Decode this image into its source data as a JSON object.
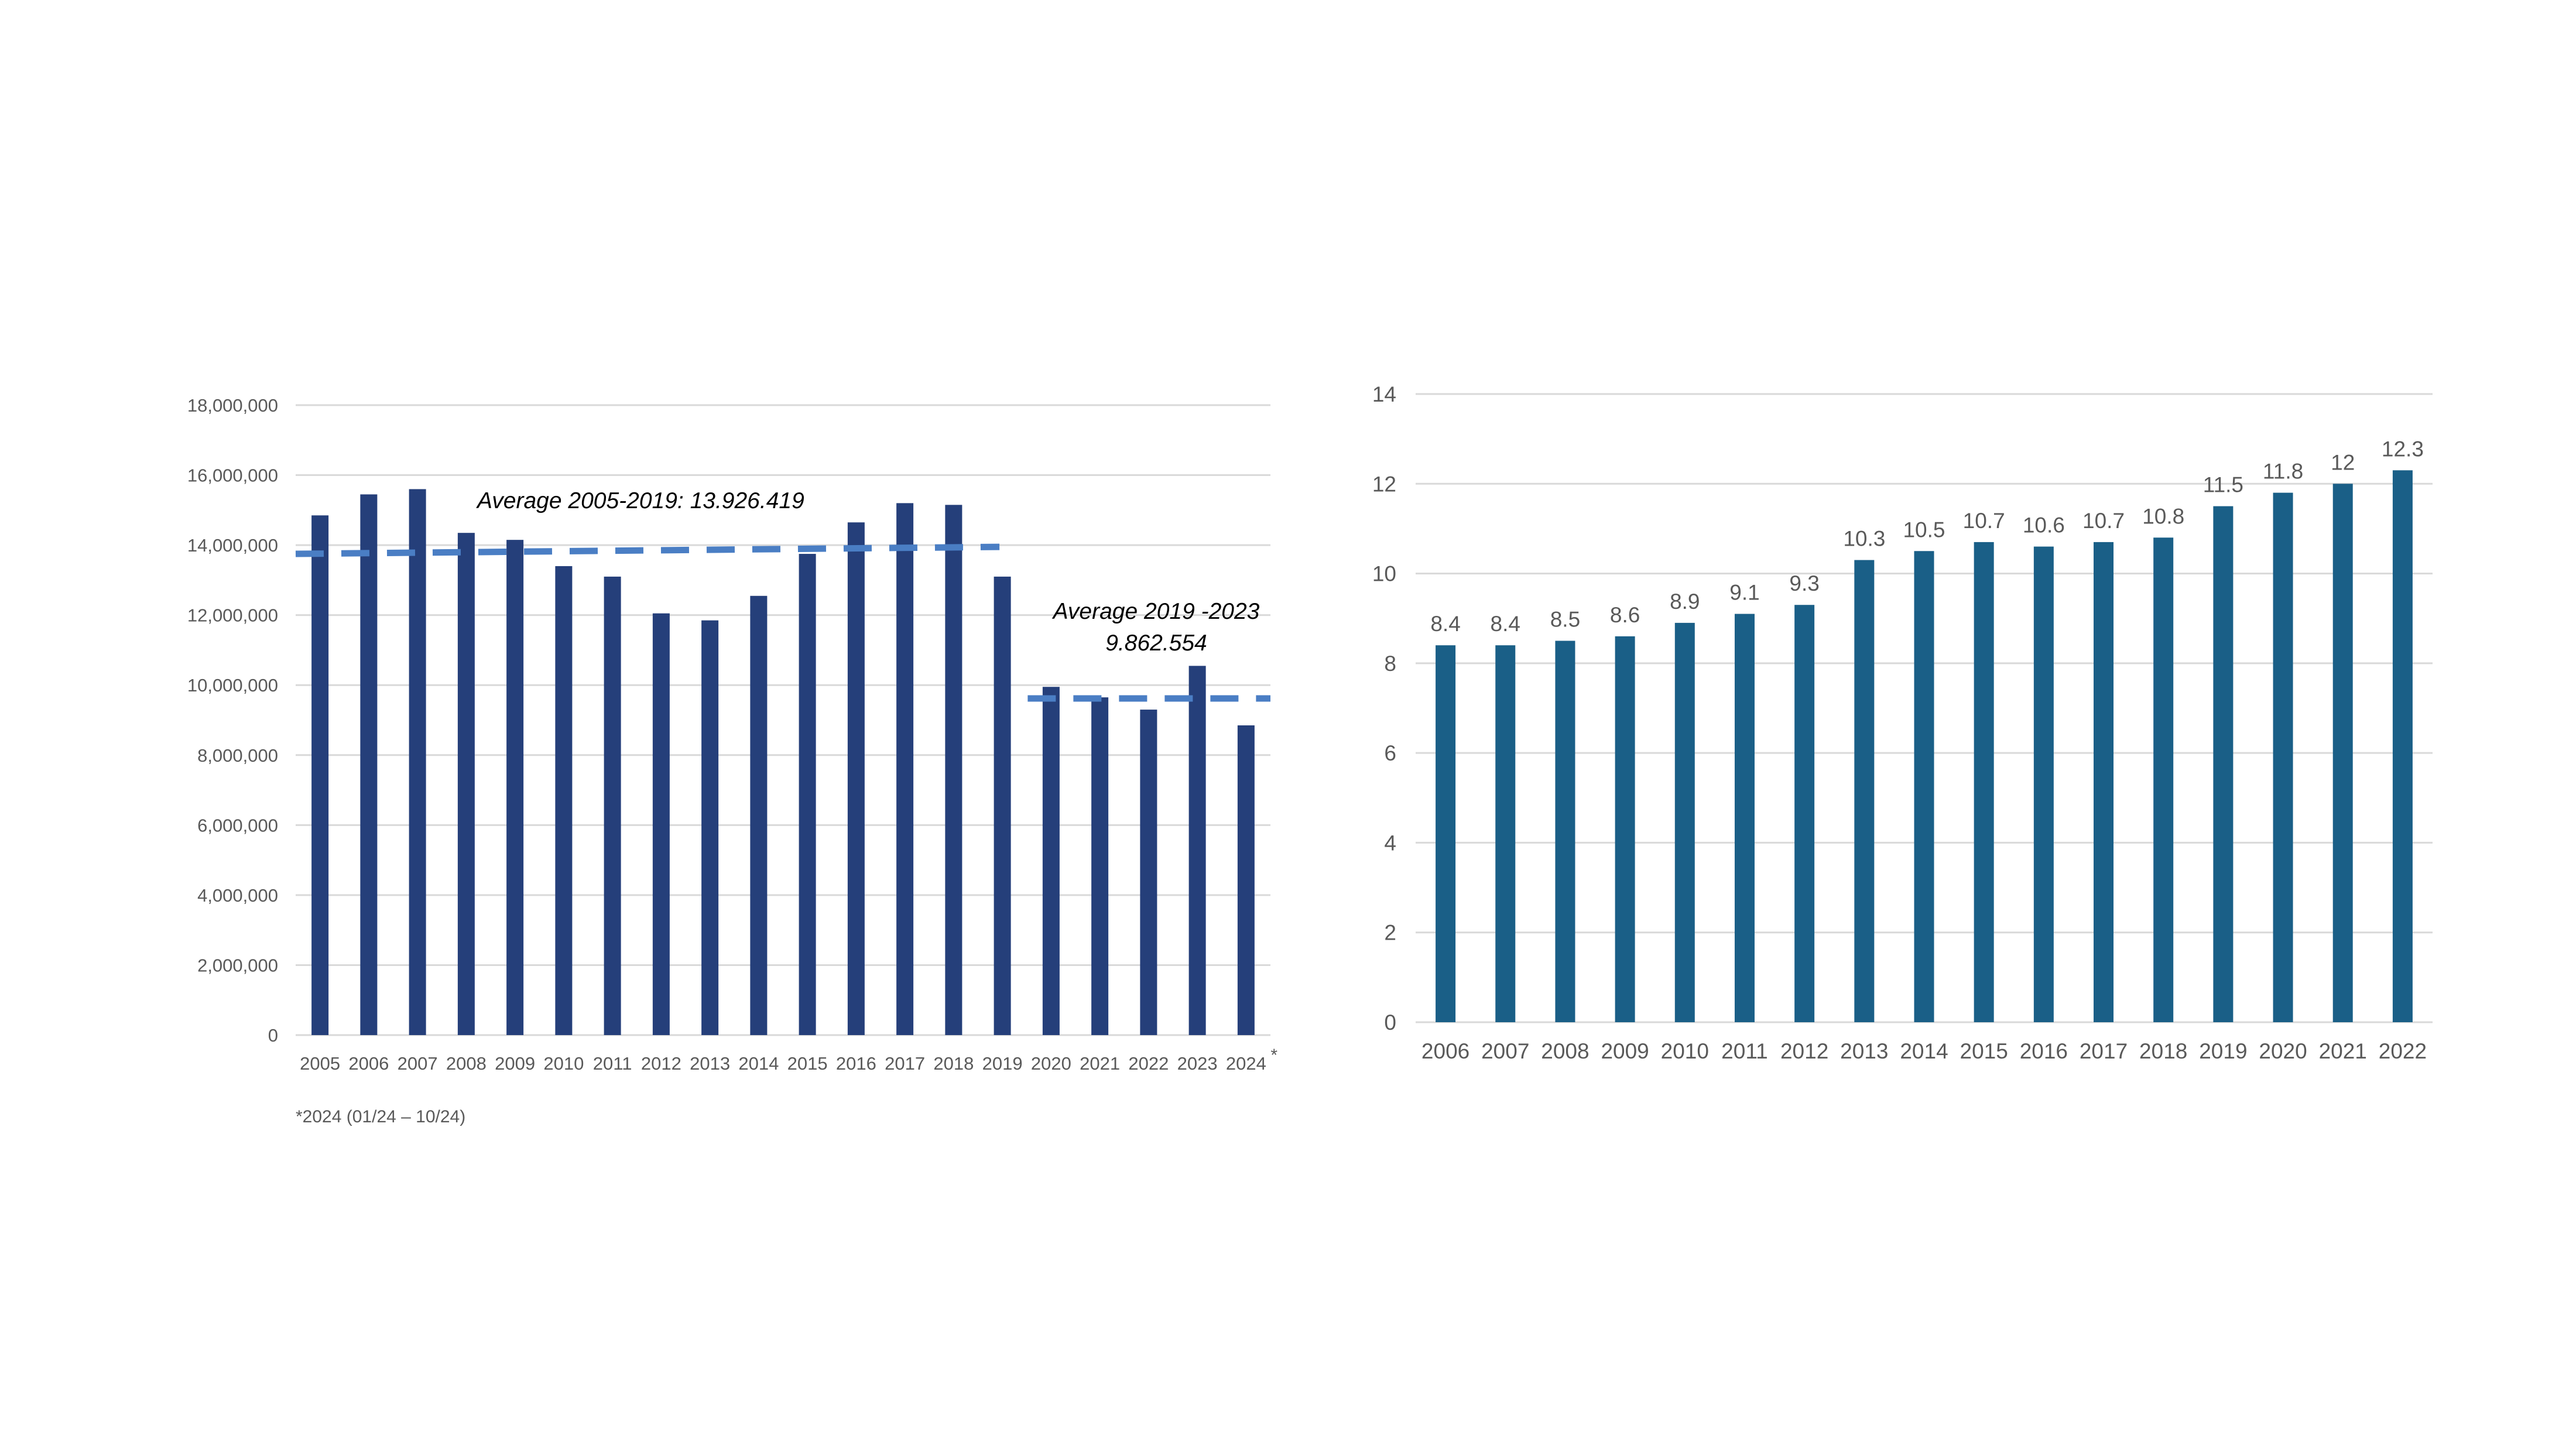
{
  "chart_data": [
    {
      "type": "bar",
      "title": "",
      "xlabel": "",
      "ylabel": "",
      "ylim": [
        0,
        18000000
      ],
      "ytick_labels": [
        "0",
        "2,000,000",
        "4,000,000",
        "6,000,000",
        "8,000,000",
        "10,000,000",
        "12,000,000",
        "14,000,000",
        "16,000,000",
        "18,000,000"
      ],
      "ytick_values": [
        0,
        2000000,
        4000000,
        6000000,
        8000000,
        10000000,
        12000000,
        14000000,
        16000000,
        18000000
      ],
      "categories": [
        "2005",
        "2006",
        "2007",
        "2008",
        "2009",
        "2010",
        "2011",
        "2012",
        "2013",
        "2014",
        "2015",
        "2016",
        "2017",
        "2018",
        "2019",
        "2020",
        "2021",
        "2022",
        "2023",
        "2024"
      ],
      "values": [
        14850000,
        15450000,
        15600000,
        14350000,
        14150000,
        13400000,
        13100000,
        12050000,
        11850000,
        12550000,
        13750000,
        14650000,
        15200000,
        15150000,
        13100000,
        9950000,
        9650000,
        9300000,
        10550000,
        8850000
      ],
      "bar_color": "#253F7A",
      "last_category_marker": "*",
      "footnote": "*2024 (01/24 – 10/24)",
      "averages": [
        {
          "label": "Average 2005-2019: 13.926.419",
          "start_value": 13750000,
          "end_value": 13950000,
          "from_category": "2005",
          "to_category": "2019"
        },
        {
          "label_line1": "Average 2019 -2023",
          "label_line2": "9.862.554",
          "start_value": 9620000,
          "end_value": 9620000,
          "from_category": "2020",
          "to_category": "2024"
        }
      ],
      "average_line_color": "#4A7EC4"
    },
    {
      "type": "bar",
      "title": "",
      "xlabel": "",
      "ylabel": "",
      "ylim": [
        0,
        14
      ],
      "ytick_labels": [
        "0",
        "2",
        "4",
        "6",
        "8",
        "10",
        "12",
        "14"
      ],
      "ytick_values": [
        0,
        2,
        4,
        6,
        8,
        10,
        12,
        14
      ],
      "categories": [
        "2006",
        "2007",
        "2008",
        "2009",
        "2010",
        "2011",
        "2012",
        "2013",
        "2014",
        "2015",
        "2016",
        "2017",
        "2018",
        "2019",
        "2020",
        "2021",
        "2022"
      ],
      "values": [
        8.4,
        8.4,
        8.5,
        8.6,
        8.9,
        9.1,
        9.3,
        10.3,
        10.5,
        10.7,
        10.6,
        10.7,
        10.8,
        11.5,
        11.8,
        12,
        12.3
      ],
      "data_labels": [
        "8.4",
        "8.4",
        "8.5",
        "8.6",
        "8.9",
        "9.1",
        "9.3",
        "10.3",
        "10.5",
        "10.7",
        "10.6",
        "10.7",
        "10.8",
        "11.5",
        "11.8",
        "12",
        "12.3"
      ],
      "bar_color": "#1A5F87"
    }
  ],
  "colors": {
    "gridline": "#D9D9D9",
    "axis_text": "#595959",
    "annotation_text": "#000000"
  }
}
